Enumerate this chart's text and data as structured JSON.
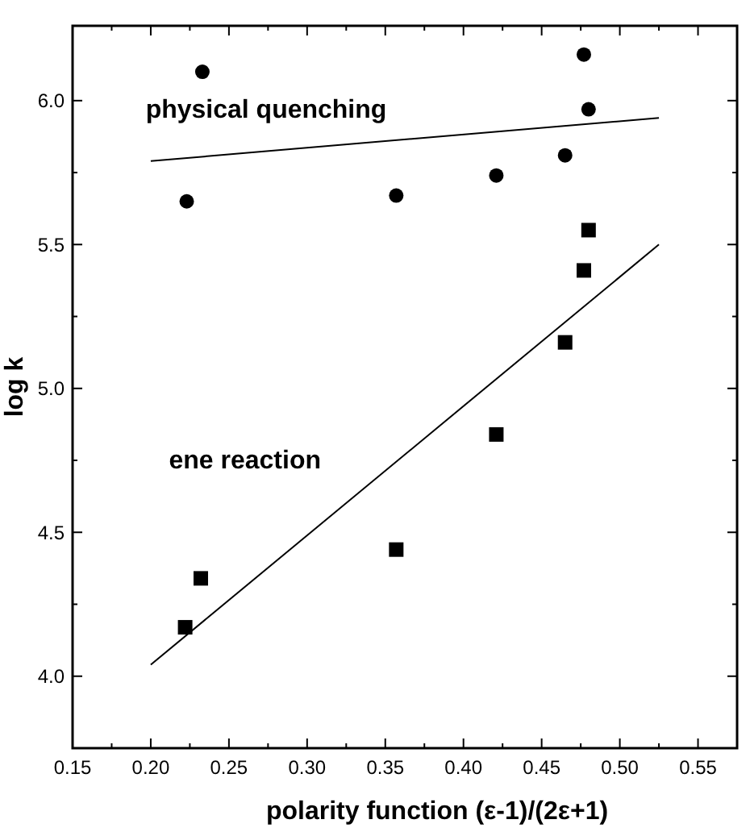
{
  "chart_data": {
    "type": "scatter",
    "xlabel": "polarity function (ε-1)/(2ε+1)",
    "ylabel": "log k",
    "xlim": [
      0.15,
      0.575
    ],
    "ylim": [
      3.75,
      6.26
    ],
    "xticks": [
      {
        "value": 0.15,
        "label": "0.15"
      },
      {
        "value": 0.175,
        "label": null
      },
      {
        "value": 0.2,
        "label": "0.20"
      },
      {
        "value": 0.225,
        "label": null
      },
      {
        "value": 0.25,
        "label": "0.25"
      },
      {
        "value": 0.275,
        "label": null
      },
      {
        "value": 0.3,
        "label": "0.30"
      },
      {
        "value": 0.325,
        "label": null
      },
      {
        "value": 0.35,
        "label": "0.35"
      },
      {
        "value": 0.375,
        "label": null
      },
      {
        "value": 0.4,
        "label": "0.40"
      },
      {
        "value": 0.425,
        "label": null
      },
      {
        "value": 0.45,
        "label": "0.45"
      },
      {
        "value": 0.475,
        "label": null
      },
      {
        "value": 0.5,
        "label": "0.50"
      },
      {
        "value": 0.525,
        "label": null
      },
      {
        "value": 0.55,
        "label": "0.55"
      }
    ],
    "yticks": [
      {
        "value": 4,
        "label": "4.0"
      },
      {
        "value": 4.25,
        "label": null
      },
      {
        "value": 4.5,
        "label": "4.5"
      },
      {
        "value": 4.75,
        "label": null
      },
      {
        "value": 5,
        "label": "5.0"
      },
      {
        "value": 5.25,
        "label": null
      },
      {
        "value": 5.5,
        "label": "5.5"
      },
      {
        "value": 5.75,
        "label": null
      },
      {
        "value": 6,
        "label": "6.0"
      }
    ],
    "grid": false,
    "series": [
      {
        "marker": "circle",
        "color": "#000000",
        "x": [
          0.223,
          0.233,
          0.357,
          0.421,
          0.465,
          0.477,
          0.48
        ],
        "values": [
          5.65,
          6.1,
          5.67,
          5.74,
          5.81,
          6.16,
          5.97
        ]
      },
      {
        "marker": "square",
        "color": "#000000",
        "x": [
          0.222,
          0.232,
          0.357,
          0.421,
          0.465,
          0.477,
          0.48
        ],
        "values": [
          4.17,
          4.34,
          4.44,
          4.84,
          5.16,
          5.41,
          5.55
        ]
      },
      {
        "type": "line",
        "marker": "none",
        "line_style": "solid",
        "color": "#000000",
        "x": [
          0.2,
          0.525
        ],
        "values": [
          5.79,
          5.94
        ]
      },
      {
        "type": "line",
        "marker": "none",
        "line_style": "solid",
        "color": "#000000",
        "x": [
          0.2,
          0.525
        ],
        "values": [
          4.04,
          5.5
        ]
      }
    ],
    "annotations": [
      "physical quenching",
      "ene reaction"
    ]
  }
}
